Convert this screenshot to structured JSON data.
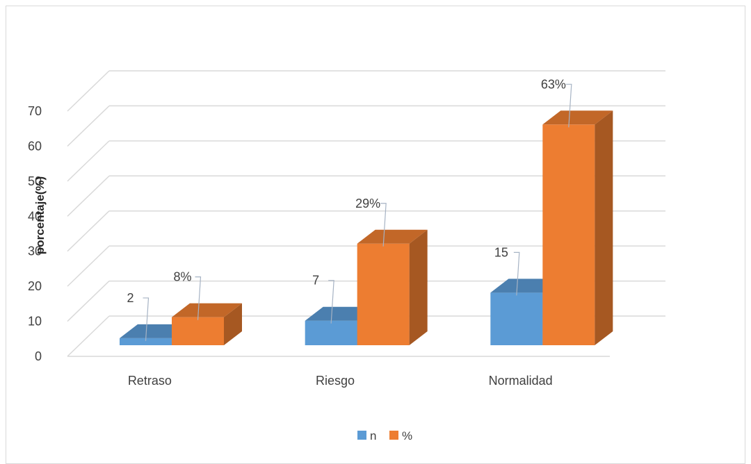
{
  "chart_data": {
    "type": "bar",
    "style": "3d-clustered-column",
    "categories": [
      "Retraso",
      "Riesgo",
      "Normalidad"
    ],
    "series": [
      {
        "name": "n",
        "values": [
          2,
          7,
          15
        ],
        "labels": [
          "2",
          "7",
          "15"
        ],
        "color": "#5b9bd5"
      },
      {
        "name": "%",
        "values": [
          8,
          29,
          63
        ],
        "labels": [
          "8%",
          "29%",
          "63%"
        ],
        "color": "#ed7d31"
      }
    ],
    "ylabel": "porcentaje(%)",
    "ylim": [
      0,
      70
    ],
    "yticks": [
      0,
      10,
      20,
      30,
      40,
      50,
      60,
      70
    ],
    "grid": true,
    "legend": "bottom"
  }
}
